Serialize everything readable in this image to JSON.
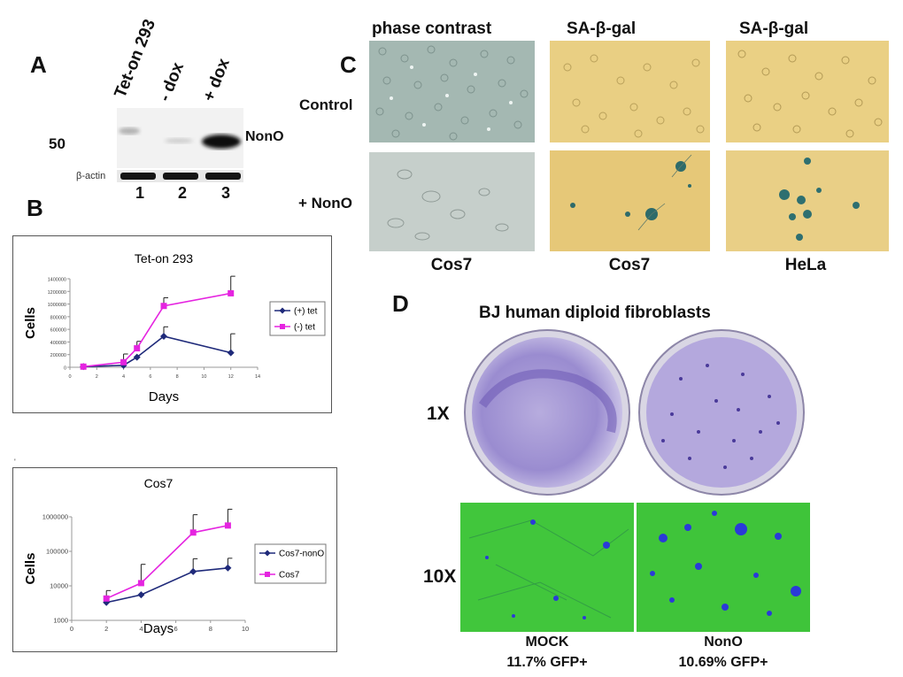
{
  "panel_a": {
    "letter": "A",
    "lanes": [
      "Tet-on 293",
      "- dox",
      "+ dox"
    ],
    "lane_numbers": [
      "1",
      "2",
      "3"
    ],
    "marker": "50",
    "band_label": "NonO",
    "loading_label": "β-actin"
  },
  "panel_b": {
    "letter": "B"
  },
  "panel_c": {
    "letter": "C",
    "column_headers": [
      "phase contrast",
      "SA-β-gal",
      "SA-β-gal"
    ],
    "row_labels": [
      "Control",
      "+ NonO"
    ],
    "column_captions": [
      "Cos7",
      "Cos7",
      "HeLa"
    ]
  },
  "panel_d": {
    "letter": "D",
    "title": "BJ human diploid fibroblasts",
    "row_labels": [
      "1X",
      "10X"
    ],
    "captions": [
      {
        "name": "MOCK",
        "gfp": "11.7% GFP+"
      },
      {
        "name": "NonO",
        "gfp": "10.69% GFP+"
      }
    ]
  },
  "colors": {
    "series_plus": "#1f2a7a",
    "series_minus": "#e524e0",
    "phase_bg": "#aab9b5",
    "sagal_bg": "#e8cf82",
    "crystal_violet": "#8a79c6",
    "gfp_green": "#3fc43a",
    "blue_stain": "#2a3ad8"
  },
  "chart_data": [
    {
      "type": "line",
      "title": "Tet-on 293",
      "xlabel": "Days",
      "ylabel": "Cells",
      "xlim": [
        0,
        14
      ],
      "ylim": [
        0,
        1400000
      ],
      "xticks": [
        "0",
        "2",
        "4",
        "6",
        "8",
        "10",
        "12",
        "14"
      ],
      "yticks": [
        "0",
        "200000",
        "400000",
        "600000",
        "800000",
        "1000000",
        "1200000",
        "1400000"
      ],
      "legend_position": "right",
      "series": [
        {
          "name": "(+) tet",
          "color": "#1f2a7a",
          "marker": "diamond",
          "x": [
            1,
            4,
            5,
            7,
            12
          ],
          "y": [
            10000,
            30000,
            160000,
            490000,
            230000
          ],
          "err": [
            0,
            0,
            0,
            150000,
            300000
          ]
        },
        {
          "name": "(-) tet",
          "color": "#e524e0",
          "marker": "square",
          "x": [
            1,
            4,
            5,
            7,
            12
          ],
          "y": [
            10000,
            80000,
            300000,
            970000,
            1170000
          ],
          "err": [
            0,
            130000,
            110000,
            130000,
            270000
          ]
        }
      ]
    },
    {
      "type": "line",
      "title": "Cos7",
      "xlabel": "Days",
      "ylabel": "Cells",
      "scale": "log",
      "xlim": [
        0,
        10
      ],
      "ylim": [
        1000,
        1000000
      ],
      "xticks": [
        "0",
        "2",
        "4",
        "6",
        "8",
        "10"
      ],
      "yticks": [
        "1000",
        "10000",
        "100000",
        "1000000"
      ],
      "legend_position": "right",
      "series": [
        {
          "name": "Cos7-nonO",
          "color": "#1f2a7a",
          "marker": "diamond",
          "x": [
            2,
            4,
            7,
            9
          ],
          "y": [
            3300,
            5500,
            26000,
            33000
          ],
          "err": [
            0,
            0,
            35000,
            30000
          ]
        },
        {
          "name": "Cos7",
          "color": "#e524e0",
          "marker": "square",
          "x": [
            2,
            4,
            7,
            9
          ],
          "y": [
            4300,
            12000,
            350000,
            560000
          ],
          "err": [
            3000,
            30000,
            800000,
            1100000
          ]
        }
      ]
    }
  ]
}
